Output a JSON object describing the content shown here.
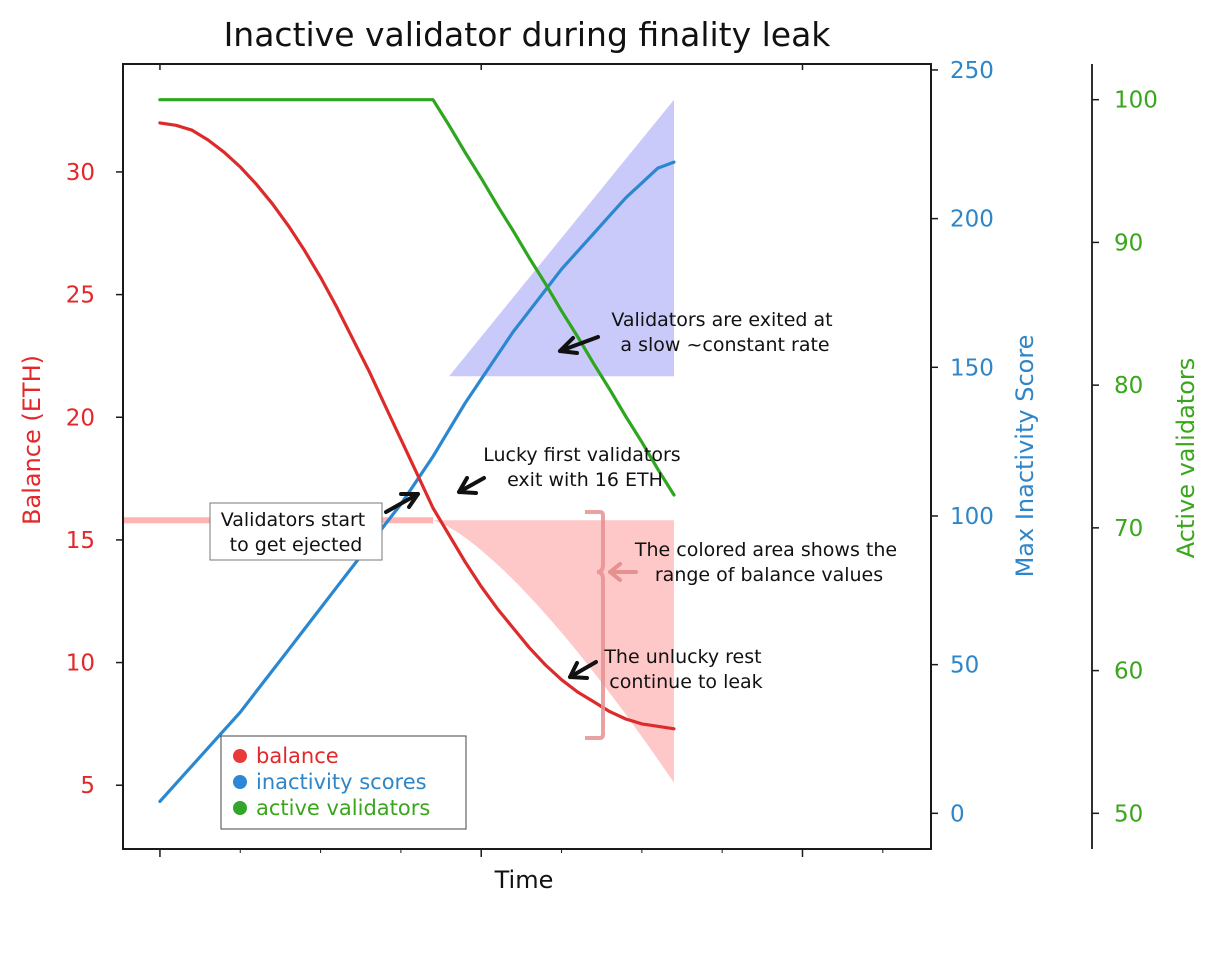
{
  "chart_data": {
    "type": "line",
    "title": "Inactive validator during finality leak",
    "xlabel": "Time",
    "x": [
      0,
      1,
      2,
      3,
      4,
      5,
      6,
      7,
      8,
      9,
      10,
      11,
      12,
      13,
      14,
      15,
      16,
      17,
      18,
      19,
      20,
      21,
      22,
      23,
      24,
      25,
      26,
      27,
      28,
      29,
      30,
      31,
      32
    ],
    "xlim": [
      -2.3,
      48
    ],
    "axes": {
      "left": {
        "label": "Balance (ETH)",
        "color": "#e3282b",
        "ylim": [
          2.4,
          34.4
        ],
        "ticks": [
          5,
          10,
          15,
          20,
          25,
          30
        ]
      },
      "right1": {
        "label": "Max Inactivity Score",
        "color": "#2e86c8",
        "ylim": [
          -12,
          252
        ],
        "ticks": [
          0,
          50,
          100,
          150,
          200,
          250
        ]
      },
      "right2": {
        "label": "Active validators",
        "color": "#3aa61c",
        "ylim": [
          47.5,
          102.5
        ],
        "ticks": [
          50,
          60,
          70,
          80,
          90,
          100
        ]
      }
    },
    "series": [
      {
        "name": "balance",
        "axis": "left",
        "color": "#dd2b2b",
        "values": [
          32.0,
          31.9,
          31.7,
          31.3,
          30.8,
          30.2,
          29.5,
          28.7,
          27.8,
          26.8,
          25.7,
          24.5,
          23.2,
          21.9,
          20.5,
          19.1,
          17.7,
          16.3,
          15.2,
          14.1,
          13.1,
          12.2,
          11.4,
          10.6,
          9.9,
          9.3,
          8.8,
          8.4,
          8.0,
          7.7,
          7.5,
          7.4,
          7.3
        ]
      },
      {
        "name": "inactivity scores",
        "axis": "right1",
        "color": "#2b88d0",
        "values": [
          4,
          10,
          16,
          22,
          28,
          34,
          41,
          48,
          55,
          62,
          69,
          76,
          83,
          90,
          97,
          104,
          112,
          120,
          129,
          138,
          146,
          154,
          162,
          169,
          176,
          183,
          189,
          195,
          201,
          207,
          212,
          217,
          219
        ]
      },
      {
        "name": "active validators",
        "axis": "right2",
        "color": "#2ea61f",
        "values": [
          100,
          100,
          100,
          100,
          100,
          100,
          100,
          100,
          100,
          100,
          100,
          100,
          100,
          100,
          100,
          100,
          100,
          100,
          98.2,
          96.3,
          94.5,
          92.6,
          90.8,
          88.9,
          87.1,
          85.2,
          83.4,
          81.5,
          79.7,
          77.8,
          76.0,
          74.1,
          72.3
        ]
      }
    ],
    "bands": [
      {
        "axis": "left",
        "color": "#ff9a9a",
        "x": [
          17,
          32
        ],
        "upper": 15.8,
        "lower": [
          15.8,
          5.1
        ]
      },
      {
        "axis": "right1",
        "color": "#9f9ff6",
        "x": [
          18,
          32
        ],
        "lower": 147,
        "upper": 240
      }
    ],
    "annotations": [
      "Validators are exited at\na slow ~constant rate",
      "Lucky first validators\nexit with 16 ETH",
      "Validators start\nto get ejected",
      "The colored area shows the\nrange of balance values",
      "The unlucky rest\ncontinue to leak"
    ],
    "legend": {
      "placement": "bottom-left",
      "entries": [
        "balance",
        "inactivity scores",
        "active validators"
      ]
    },
    "grid": false
  }
}
